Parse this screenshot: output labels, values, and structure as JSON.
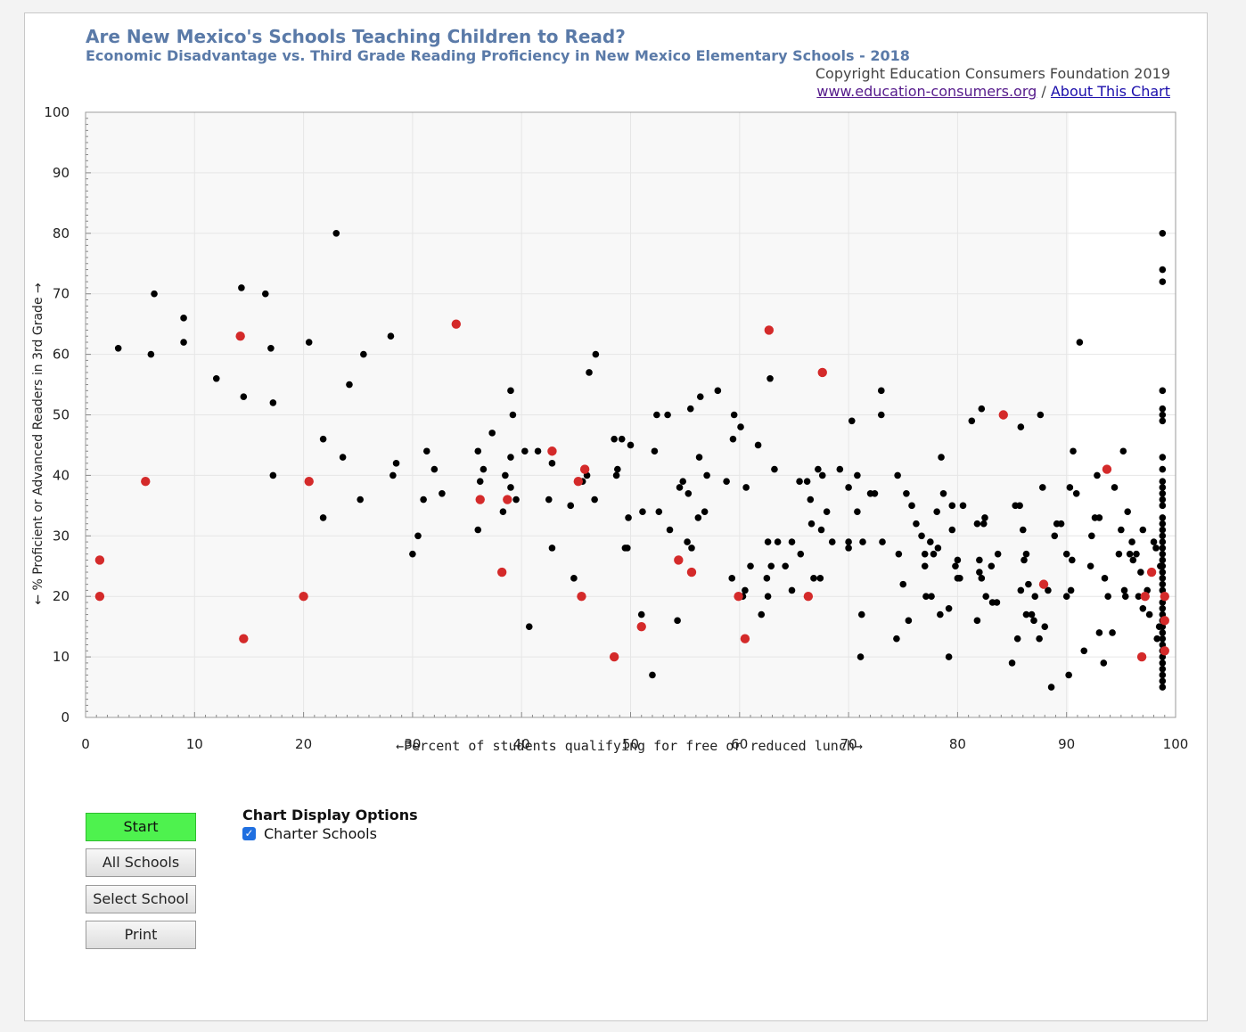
{
  "header": {
    "title": "Are New Mexico's Schools Teaching Children to Read?",
    "subtitle": "Economic Disadvantage vs. Third Grade Reading Proficiency in New Mexico Elementary Schools - 2018",
    "copyright": "Copyright Education Consumers Foundation 2019",
    "link_site": "www.education-consumers.org",
    "link_separator": "/",
    "link_about": "About This Chart"
  },
  "buttons": {
    "start": "Start",
    "all_schools": "All Schools",
    "select_school": "Select School",
    "print": "Print"
  },
  "options": {
    "title": "Chart Display Options",
    "charter_label": "Charter Schools",
    "charter_checked": true
  },
  "colors": {
    "regular": "#000000",
    "charter": "#d42a2a",
    "title": "#5a7aa8",
    "start_button": "#4ef24e"
  },
  "chart_data": {
    "type": "scatter",
    "xlabel": "←Percent of students qualifying for free or reduced lunch→",
    "ylabel": "← % Proficient or Advanced Readers in 3rd Grade →",
    "xlim": [
      0,
      100
    ],
    "ylim": [
      0,
      100
    ],
    "xticks": [
      "0",
      "10",
      "20",
      "30",
      "40",
      "50",
      "60",
      "70",
      "80",
      "90",
      "100"
    ],
    "yticks": [
      "0",
      "10",
      "20",
      "30",
      "40",
      "50",
      "60",
      "70",
      "80",
      "90",
      "100"
    ],
    "grid": true,
    "series": [
      {
        "points": [
          [
            3,
            61
          ],
          [
            6,
            60
          ],
          [
            6.3,
            70
          ],
          [
            9,
            66
          ],
          [
            9,
            62
          ],
          [
            12,
            56
          ],
          [
            14.3,
            71
          ],
          [
            14.5,
            53
          ],
          [
            16.5,
            70
          ],
          [
            17,
            61
          ],
          [
            17.2,
            52
          ],
          [
            17.2,
            40
          ],
          [
            20.5,
            62
          ],
          [
            21.8,
            46
          ],
          [
            21.8,
            33
          ],
          [
            23,
            80
          ],
          [
            23.6,
            43
          ],
          [
            24.2,
            55
          ],
          [
            25.2,
            36
          ],
          [
            25.5,
            60
          ],
          [
            28,
            63
          ],
          [
            28.2,
            40
          ],
          [
            28.5,
            42
          ],
          [
            30,
            27
          ],
          [
            30.5,
            30
          ],
          [
            31,
            36
          ],
          [
            31.3,
            44
          ],
          [
            32,
            41
          ],
          [
            32.7,
            37
          ],
          [
            36,
            31
          ],
          [
            36,
            44
          ],
          [
            36.2,
            39
          ],
          [
            36.5,
            41
          ],
          [
            37.3,
            47
          ],
          [
            38.3,
            34
          ],
          [
            38.5,
            40
          ],
          [
            39,
            54
          ],
          [
            39,
            43
          ],
          [
            39,
            38
          ],
          [
            39.2,
            50
          ],
          [
            39.5,
            36
          ],
          [
            40.3,
            44
          ],
          [
            40.7,
            15
          ],
          [
            41.5,
            44
          ],
          [
            42.5,
            36
          ],
          [
            42.8,
            28
          ],
          [
            42.8,
            42
          ],
          [
            44.5,
            35
          ],
          [
            44.8,
            23
          ],
          [
            45.6,
            39
          ],
          [
            46,
            40
          ],
          [
            46.2,
            57
          ],
          [
            46.7,
            36
          ],
          [
            46.8,
            60
          ],
          [
            48.5,
            46
          ],
          [
            48.7,
            40
          ],
          [
            48.8,
            41
          ],
          [
            49.2,
            46
          ],
          [
            49.5,
            28
          ],
          [
            49.7,
            28
          ],
          [
            49.8,
            33
          ],
          [
            50,
            45
          ],
          [
            51,
            17
          ],
          [
            51.1,
            34
          ],
          [
            52,
            7
          ],
          [
            52.2,
            44
          ],
          [
            52.4,
            50
          ],
          [
            52.6,
            34
          ],
          [
            53.4,
            50
          ],
          [
            53.6,
            31
          ],
          [
            54.3,
            16
          ],
          [
            54.5,
            38
          ],
          [
            54.8,
            39
          ],
          [
            55.2,
            29
          ],
          [
            55.3,
            37
          ],
          [
            55.5,
            51
          ],
          [
            55.6,
            28
          ],
          [
            56.2,
            33
          ],
          [
            56.3,
            43
          ],
          [
            56.4,
            53
          ],
          [
            56.8,
            34
          ],
          [
            57,
            40
          ],
          [
            58,
            54
          ],
          [
            58.8,
            39
          ],
          [
            59.3,
            23
          ],
          [
            59.4,
            46
          ],
          [
            59.5,
            50
          ],
          [
            60.1,
            48
          ],
          [
            60.3,
            20
          ],
          [
            60.5,
            21
          ],
          [
            60.6,
            38
          ],
          [
            61,
            25
          ],
          [
            61.7,
            45
          ],
          [
            62,
            17
          ],
          [
            62.5,
            23
          ],
          [
            62.6,
            29
          ],
          [
            62.6,
            20
          ],
          [
            62.8,
            56
          ],
          [
            62.9,
            25
          ],
          [
            63.2,
            41
          ],
          [
            63.5,
            29
          ],
          [
            64.2,
            25
          ],
          [
            64.8,
            29
          ],
          [
            64.8,
            21
          ],
          [
            65.5,
            39
          ],
          [
            65.6,
            27
          ],
          [
            66.2,
            39
          ],
          [
            66.5,
            36
          ],
          [
            66.6,
            32
          ],
          [
            66.8,
            23
          ],
          [
            67.2,
            41
          ],
          [
            67.4,
            23
          ],
          [
            67.5,
            31
          ],
          [
            67.6,
            40
          ],
          [
            68,
            34
          ],
          [
            68.5,
            29
          ],
          [
            69.2,
            41
          ],
          [
            70,
            28
          ],
          [
            70,
            38
          ],
          [
            70,
            29
          ],
          [
            70.3,
            49
          ],
          [
            70.8,
            40
          ],
          [
            70.8,
            34
          ],
          [
            71.1,
            10
          ],
          [
            71.2,
            17
          ],
          [
            71.3,
            29
          ],
          [
            72,
            37
          ],
          [
            72.4,
            37
          ],
          [
            73,
            54
          ],
          [
            73,
            50
          ],
          [
            73.1,
            29
          ],
          [
            74.4,
            13
          ],
          [
            74.5,
            40
          ],
          [
            74.6,
            27
          ],
          [
            75,
            22
          ],
          [
            75.3,
            37
          ],
          [
            75.5,
            16
          ],
          [
            75.8,
            35
          ],
          [
            76.2,
            32
          ],
          [
            76.7,
            30
          ],
          [
            77,
            27
          ],
          [
            77,
            25
          ],
          [
            77.1,
            20
          ],
          [
            77.5,
            29
          ],
          [
            77.6,
            20
          ],
          [
            77.8,
            27
          ],
          [
            78.1,
            34
          ],
          [
            78.2,
            28
          ],
          [
            78.4,
            17
          ],
          [
            78.5,
            43
          ],
          [
            78.7,
            37
          ],
          [
            79.2,
            10
          ],
          [
            79.2,
            18
          ],
          [
            79.5,
            35
          ],
          [
            79.5,
            31
          ],
          [
            79.8,
            25
          ],
          [
            80,
            26
          ],
          [
            80,
            23
          ],
          [
            80.2,
            23
          ],
          [
            80.5,
            35
          ],
          [
            81.3,
            49
          ],
          [
            81.8,
            16
          ],
          [
            81.8,
            32
          ],
          [
            82,
            26
          ],
          [
            82,
            24
          ],
          [
            82.2,
            51
          ],
          [
            82.2,
            23
          ],
          [
            82.4,
            32
          ],
          [
            82.5,
            33
          ],
          [
            82.6,
            20
          ],
          [
            83.1,
            25
          ],
          [
            83.2,
            19
          ],
          [
            83.6,
            19
          ],
          [
            83.7,
            27
          ],
          [
            85,
            9
          ],
          [
            85.3,
            35
          ],
          [
            85.5,
            13
          ],
          [
            85.7,
            35
          ],
          [
            85.8,
            21
          ],
          [
            85.8,
            48
          ],
          [
            86,
            31
          ],
          [
            86.1,
            26
          ],
          [
            86.3,
            27
          ],
          [
            86.3,
            17
          ],
          [
            86.5,
            22
          ],
          [
            86.8,
            17
          ],
          [
            87,
            16
          ],
          [
            87.1,
            20
          ],
          [
            87.5,
            13
          ],
          [
            87.6,
            50
          ],
          [
            87.8,
            38
          ],
          [
            88,
            15
          ],
          [
            88.3,
            21
          ],
          [
            88.6,
            5
          ],
          [
            88.9,
            30
          ],
          [
            89.1,
            32
          ],
          [
            89.5,
            32
          ],
          [
            90,
            27
          ],
          [
            90,
            20
          ],
          [
            90.2,
            7
          ],
          [
            90.3,
            38
          ],
          [
            90.4,
            21
          ],
          [
            90.5,
            26
          ],
          [
            90.6,
            44
          ],
          [
            90.9,
            37
          ],
          [
            91.2,
            62
          ],
          [
            91.6,
            11
          ],
          [
            92.2,
            25
          ],
          [
            92.3,
            30
          ],
          [
            92.6,
            33
          ],
          [
            92.8,
            40
          ],
          [
            93,
            14
          ],
          [
            93,
            33
          ],
          [
            93.4,
            9
          ],
          [
            93.5,
            23
          ],
          [
            93.8,
            20
          ],
          [
            94.2,
            14
          ],
          [
            94.4,
            38
          ],
          [
            94.8,
            27
          ],
          [
            95,
            31
          ],
          [
            95.2,
            44
          ],
          [
            95.3,
            21
          ],
          [
            95.4,
            20
          ],
          [
            95.6,
            34
          ],
          [
            95.8,
            27
          ],
          [
            96,
            29
          ],
          [
            96.1,
            26
          ],
          [
            96.4,
            27
          ],
          [
            96.6,
            20
          ],
          [
            96.8,
            24
          ],
          [
            97,
            18
          ],
          [
            97,
            31
          ],
          [
            97.4,
            21
          ],
          [
            97.6,
            17
          ],
          [
            98,
            29
          ],
          [
            98.2,
            28
          ],
          [
            98.3,
            13
          ],
          [
            98.5,
            15
          ],
          [
            98.6,
            25
          ],
          [
            98.8,
            80
          ],
          [
            98.8,
            74
          ],
          [
            98.8,
            72
          ],
          [
            98.8,
            54
          ],
          [
            98.8,
            51
          ],
          [
            98.8,
            50
          ],
          [
            98.8,
            49
          ],
          [
            98.8,
            43
          ],
          [
            98.8,
            41
          ],
          [
            98.8,
            39
          ],
          [
            98.8,
            38
          ],
          [
            98.8,
            37
          ],
          [
            98.8,
            36
          ],
          [
            98.8,
            35
          ],
          [
            98.8,
            33
          ],
          [
            98.8,
            32
          ],
          [
            98.8,
            31
          ],
          [
            98.8,
            30
          ],
          [
            98.8,
            29
          ],
          [
            98.8,
            28
          ],
          [
            98.8,
            27
          ],
          [
            98.8,
            26
          ],
          [
            98.8,
            25
          ],
          [
            98.8,
            24
          ],
          [
            98.8,
            23
          ],
          [
            98.8,
            22
          ],
          [
            98.8,
            21
          ],
          [
            98.8,
            19
          ],
          [
            98.8,
            18
          ],
          [
            98.8,
            17
          ],
          [
            98.8,
            16
          ],
          [
            98.8,
            15
          ],
          [
            98.8,
            14
          ],
          [
            98.8,
            13
          ],
          [
            98.8,
            12
          ],
          [
            98.8,
            11
          ],
          [
            98.8,
            10
          ],
          [
            98.8,
            9
          ],
          [
            98.8,
            8
          ],
          [
            98.8,
            7
          ],
          [
            98.8,
            6
          ],
          [
            98.8,
            5
          ]
        ]
      },
      {
        "points": [
          [
            1.3,
            26
          ],
          [
            1.3,
            20
          ],
          [
            5.5,
            39
          ],
          [
            14.2,
            63
          ],
          [
            14.5,
            13
          ],
          [
            20,
            20
          ],
          [
            20.5,
            39
          ],
          [
            34,
            65
          ],
          [
            36.2,
            36
          ],
          [
            38.2,
            24
          ],
          [
            38.7,
            36
          ],
          [
            42.8,
            44
          ],
          [
            45.2,
            39
          ],
          [
            45.5,
            20
          ],
          [
            45.8,
            41
          ],
          [
            48.5,
            10
          ],
          [
            51,
            15
          ],
          [
            54.4,
            26
          ],
          [
            55.6,
            24
          ],
          [
            59.9,
            20
          ],
          [
            60.5,
            13
          ],
          [
            62.7,
            64
          ],
          [
            66.3,
            20
          ],
          [
            67.6,
            57
          ],
          [
            84.2,
            50
          ],
          [
            87.9,
            22
          ],
          [
            93.7,
            41
          ],
          [
            96.9,
            10
          ],
          [
            97.2,
            20
          ],
          [
            97.8,
            24
          ],
          [
            99,
            20
          ],
          [
            99,
            16
          ],
          [
            99,
            11
          ]
        ]
      }
    ]
  }
}
